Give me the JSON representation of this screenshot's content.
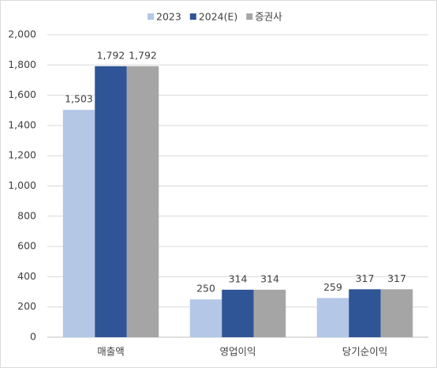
{
  "chart_data": {
    "type": "bar",
    "categories": [
      "매출액",
      "영업이익",
      "당기순이익"
    ],
    "series": [
      {
        "name": "2023",
        "color": "#b4c7e7",
        "values": [
          1503,
          250,
          259
        ],
        "value_labels": [
          "1,503",
          "250",
          "259"
        ]
      },
      {
        "name": "2024(E)",
        "color": "#2f5597",
        "values": [
          1792,
          314,
          317
        ],
        "value_labels": [
          "1,792",
          "314",
          "317"
        ]
      },
      {
        "name": "증권사",
        "color": "#a5a5a5",
        "values": [
          1792,
          314,
          317
        ],
        "value_labels": [
          "1,792",
          "314",
          "317"
        ]
      }
    ],
    "ylim": [
      0,
      2000
    ],
    "yticks": [
      0,
      200,
      400,
      600,
      800,
      {
        "value": 1000,
        "label": "1,000"
      },
      {
        "value": 1200,
        "label": "1,200"
      },
      {
        "value": 1400,
        "label": "1,400"
      },
      {
        "value": 1600,
        "label": "1,600"
      },
      {
        "value": 1800,
        "label": "1,800"
      },
      {
        "value": 2000,
        "label": "2,000"
      }
    ],
    "grid": true,
    "legend": "top"
  }
}
